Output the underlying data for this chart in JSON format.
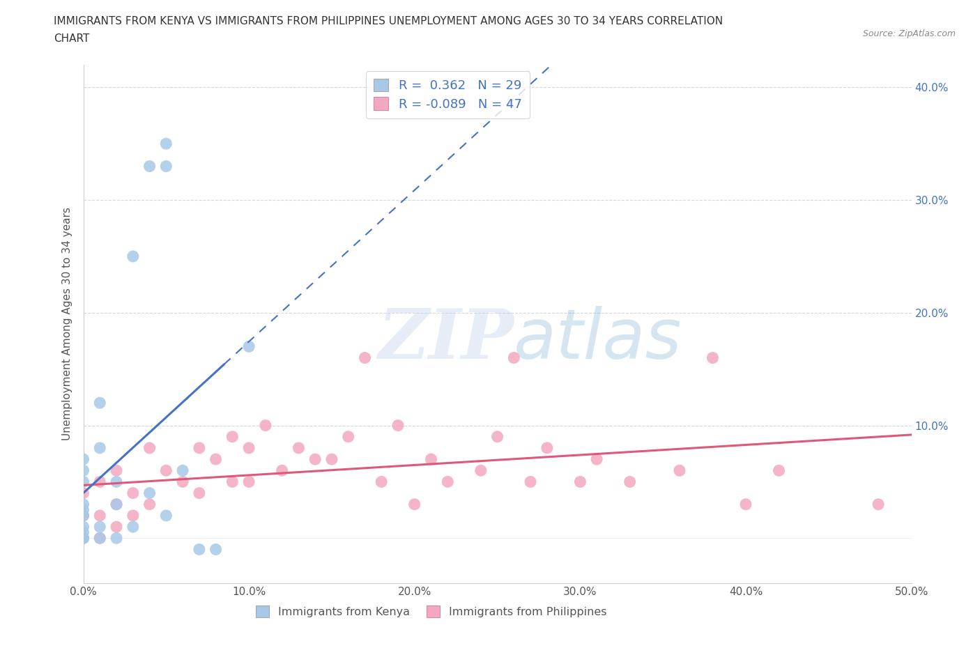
{
  "title_line1": "IMMIGRANTS FROM KENYA VS IMMIGRANTS FROM PHILIPPINES UNEMPLOYMENT AMONG AGES 30 TO 34 YEARS CORRELATION",
  "title_line2": "CHART",
  "source_text": "Source: ZipAtlas.com",
  "ylabel": "Unemployment Among Ages 30 to 34 years",
  "xlim": [
    0.0,
    0.5
  ],
  "ylim": [
    -0.04,
    0.42
  ],
  "xticks": [
    0.0,
    0.1,
    0.2,
    0.3,
    0.4,
    0.5
  ],
  "yticks": [
    0.0,
    0.1,
    0.2,
    0.3,
    0.4
  ],
  "xticklabels": [
    "0.0%",
    "10.0%",
    "20.0%",
    "30.0%",
    "40.0%",
    "50.0%"
  ],
  "yticklabels_right": [
    "",
    "10.0%",
    "20.0%",
    "30.0%",
    "40.0%"
  ],
  "kenya_color": "#a8c8e8",
  "kenya_edge_color": "#7aaed0",
  "kenya_line_color": "#4472c4",
  "philippines_color": "#f4a8c0",
  "philippines_edge_color": "#e888a8",
  "philippines_line_color": "#e05878",
  "kenya_R": 0.362,
  "kenya_N": 29,
  "philippines_R": -0.089,
  "philippines_N": 47,
  "kenya_x": [
    0.0,
    0.0,
    0.0,
    0.0,
    0.0,
    0.0,
    0.0,
    0.0,
    0.0,
    0.0,
    0.0,
    0.01,
    0.01,
    0.01,
    0.01,
    0.02,
    0.02,
    0.02,
    0.03,
    0.03,
    0.04,
    0.04,
    0.05,
    0.05,
    0.05,
    0.06,
    0.07,
    0.08,
    0.1
  ],
  "kenya_y": [
    0.0,
    0.0,
    0.0,
    0.005,
    0.01,
    0.02,
    0.025,
    0.03,
    0.05,
    0.06,
    0.07,
    0.0,
    0.01,
    0.08,
    0.12,
    0.0,
    0.03,
    0.05,
    0.01,
    0.25,
    0.04,
    0.33,
    0.02,
    0.33,
    0.35,
    0.06,
    -0.01,
    -0.01,
    0.17
  ],
  "philippines_x": [
    0.0,
    0.0,
    0.0,
    0.01,
    0.01,
    0.01,
    0.02,
    0.02,
    0.02,
    0.03,
    0.03,
    0.04,
    0.04,
    0.05,
    0.06,
    0.07,
    0.07,
    0.08,
    0.09,
    0.09,
    0.1,
    0.1,
    0.11,
    0.12,
    0.13,
    0.14,
    0.15,
    0.16,
    0.17,
    0.18,
    0.19,
    0.2,
    0.21,
    0.22,
    0.24,
    0.25,
    0.26,
    0.27,
    0.28,
    0.3,
    0.31,
    0.33,
    0.36,
    0.38,
    0.4,
    0.42,
    0.48
  ],
  "philippines_y": [
    0.0,
    0.02,
    0.04,
    0.0,
    0.02,
    0.05,
    0.01,
    0.03,
    0.06,
    0.02,
    0.04,
    0.03,
    0.08,
    0.06,
    0.05,
    0.04,
    0.08,
    0.07,
    0.05,
    0.09,
    0.05,
    0.08,
    0.1,
    0.06,
    0.08,
    0.07,
    0.07,
    0.09,
    0.16,
    0.05,
    0.1,
    0.03,
    0.07,
    0.05,
    0.06,
    0.09,
    0.16,
    0.05,
    0.08,
    0.05,
    0.07,
    0.05,
    0.06,
    0.16,
    0.03,
    0.06,
    0.03
  ],
  "watermark_zip": "ZIP",
  "watermark_atlas": "atlas",
  "background_color": "#ffffff",
  "grid_color": "#cccccc",
  "legend_label_kenya": "Immigrants from Kenya",
  "legend_label_philippines": "Immigrants from Philippines"
}
